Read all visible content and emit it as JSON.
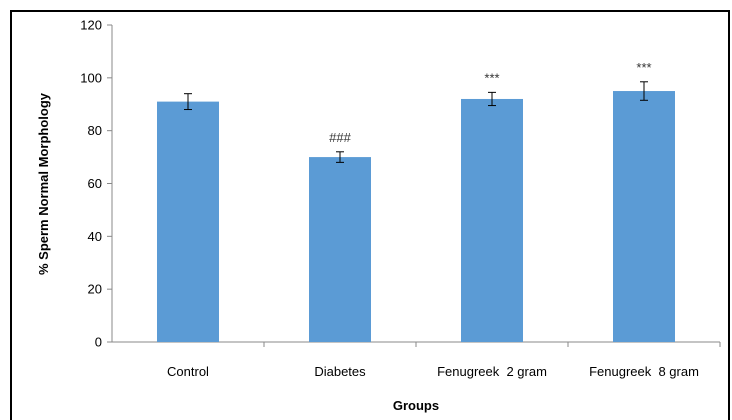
{
  "chart_data": {
    "type": "bar",
    "title": "",
    "xlabel": "Groups",
    "ylabel": "% Sperm Normal Morphology",
    "ylim": [
      0,
      120
    ],
    "yticks": [
      0,
      20,
      40,
      60,
      80,
      100,
      120
    ],
    "grid": false,
    "legend": "none",
    "bar_color": "#5b9bd5",
    "categories": [
      "Control",
      "Diabetes",
      "Fenugreek  2 gram",
      "Fenugreek  8 gram"
    ],
    "values": [
      91,
      70,
      92,
      95
    ],
    "errors": [
      3,
      2,
      2.5,
      3.5
    ],
    "annotations": [
      "",
      "###",
      "***",
      "***"
    ]
  }
}
